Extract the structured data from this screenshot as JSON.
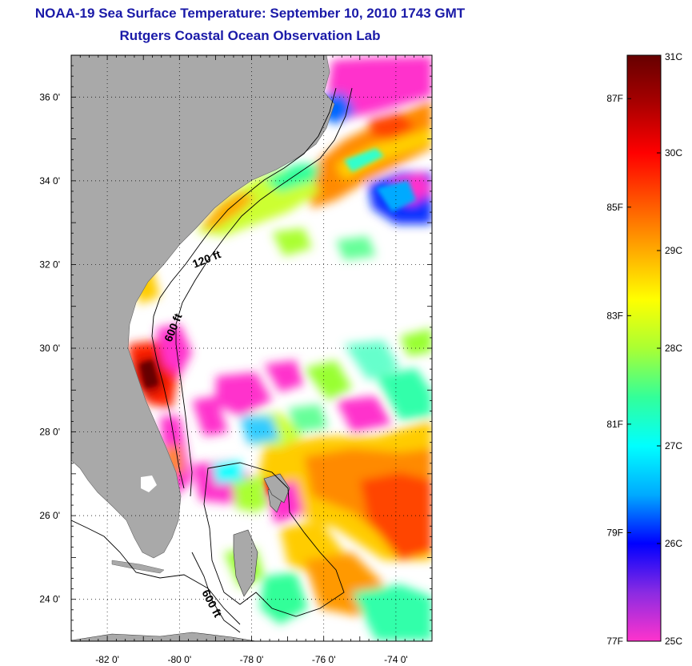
{
  "title": {
    "line1": "NOAA-19 Sea Surface Temperature:  September 10, 2010 1743 GMT",
    "line2": "Rutgers Coastal Ocean Observation Lab"
  },
  "colors": {
    "title": "#1a1aa8",
    "land": "#a9a9a9",
    "cloud": "#ffffff",
    "frame": "#000000"
  },
  "map": {
    "lat_range": [
      23,
      37
    ],
    "lon_range": [
      -83,
      -73
    ],
    "lat_ticks": [
      {
        "value": 36,
        "label": "36 0'"
      },
      {
        "value": 34,
        "label": "34 0'"
      },
      {
        "value": 32,
        "label": "32 0'"
      },
      {
        "value": 30,
        "label": "30 0'"
      },
      {
        "value": 28,
        "label": "28 0'"
      },
      {
        "value": 26,
        "label": "26 0'"
      },
      {
        "value": 24,
        "label": "24 0'"
      }
    ],
    "lon_ticks": [
      {
        "value": -82,
        "label": "-82 0'"
      },
      {
        "value": -80,
        "label": "-80 0'"
      },
      {
        "value": -78,
        "label": "-78 0'"
      },
      {
        "value": -76,
        "label": "-76 0'"
      },
      {
        "value": -74,
        "label": "-74 0'"
      }
    ],
    "contour_labels": [
      {
        "name": "contour-label-120ft-north",
        "text": "120 ft"
      },
      {
        "name": "contour-label-600ft-north",
        "text": "600 ft"
      },
      {
        "name": "contour-label-600ft-south",
        "text": "600 ft"
      }
    ]
  },
  "colorbar": {
    "celsius_range": [
      25,
      31
    ],
    "celsius_labels": [
      {
        "value": 31,
        "label": "31C"
      },
      {
        "value": 30,
        "label": "30C"
      },
      {
        "value": 29,
        "label": "29C"
      },
      {
        "value": 28,
        "label": "28C"
      },
      {
        "value": 27,
        "label": "27C"
      },
      {
        "value": 26,
        "label": "26C"
      },
      {
        "value": 25,
        "label": "25C"
      }
    ],
    "fahrenheit_labels": [
      {
        "value": 87,
        "label": "87F"
      },
      {
        "value": 85,
        "label": "85F"
      },
      {
        "value": 83,
        "label": "83F"
      },
      {
        "value": 81,
        "label": "81F"
      },
      {
        "value": 79,
        "label": "79F"
      },
      {
        "value": 77,
        "label": "77F"
      }
    ],
    "stops": [
      "#ff33cc",
      "#8a2be2",
      "#0000ff",
      "#00aaff",
      "#00ffff",
      "#33ff99",
      "#aaff33",
      "#ffff00",
      "#ffaa00",
      "#ff5500",
      "#ff0000",
      "#aa0000",
      "#660000"
    ]
  }
}
